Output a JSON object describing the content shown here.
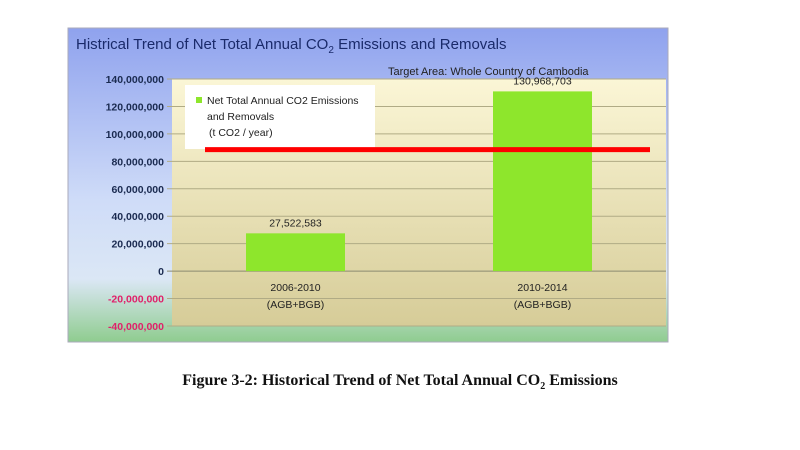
{
  "chart_data": {
    "type": "bar",
    "title": "Histrical Trend of  Net Total Annual CO₂ Emissions and Removals",
    "subtitle": "Target Area: Whole Country of  Cambodia",
    "categories": [
      "2006-2010\n(AGB+BGB)",
      "2010-2014\n(AGB+BGB)"
    ],
    "values": [
      27522583,
      130968703
    ],
    "data_labels": [
      "27,522,583",
      "130,968,703"
    ],
    "legend": {
      "entries": [
        "Net Total Annual CO2 Emissions",
        "and Removals",
        "(t CO2 / year)"
      ],
      "placement": "top-left"
    },
    "reference_line": {
      "value": 88500000,
      "color": "#ff0000"
    },
    "ylim": [
      -40000000,
      140000000
    ],
    "yticks": [
      140000000,
      120000000,
      100000000,
      80000000,
      60000000,
      40000000,
      20000000,
      0,
      -20000000,
      -40000000
    ],
    "ytick_labels": [
      "140,000,000",
      "120,000,000",
      "100,000,000",
      "80,000,000",
      "60,000,000",
      "40,000,000",
      "20,000,000",
      "0",
      "-20,000,000",
      "-40,000,000"
    ],
    "grid": true,
    "bar_color": "#8ee62c"
  },
  "caption": {
    "prefix": "Figure 3-2: Historical Trend of Net Total Annual CO",
    "sub": "2",
    "suffix": " Emissions"
  }
}
